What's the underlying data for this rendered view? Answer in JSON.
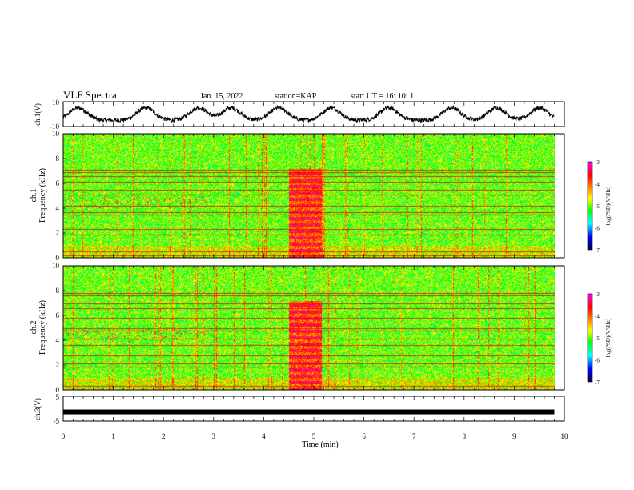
{
  "header": {
    "title": "VLF Spectra",
    "date": "Jan. 15, 2022",
    "station": "station=KAP",
    "start": "start UT =  16: 10: 1"
  },
  "colorbar": {
    "label": "log(PSD)(V²/Hz)",
    "ticks": [
      "-3",
      "-4",
      "-5",
      "-6",
      "-7"
    ],
    "colors": [
      "#ff00ff",
      "#ff0000",
      "#ff8800",
      "#ffff00",
      "#00ff00",
      "#00ffff",
      "#0000ff",
      "#000044"
    ]
  },
  "chart_data": [
    {
      "type": "line",
      "panel": "ch1-voltage",
      "ylabel": "ch.1(V)",
      "yticks": [
        "10",
        "-10"
      ],
      "ylim": [
        -10,
        10
      ],
      "xlim": [
        0,
        10
      ],
      "x_end": 9.8,
      "wave_centers": [
        0.3,
        1.65,
        2.7,
        3.35,
        4.3,
        5.35,
        6.5,
        7.75,
        8.65,
        9.5
      ],
      "level_low": -5,
      "level_high": 5
    },
    {
      "type": "heatmap",
      "panel": "ch1-spectrogram",
      "ylabel": "ch.1\nFrequency (kHz)",
      "ylabel_lines": [
        "ch.1",
        "Frequency (kHz)"
      ],
      "yticks": [
        "0",
        "2",
        "4",
        "6",
        "8",
        "10"
      ],
      "ylim": [
        0,
        10
      ],
      "xlim": [
        0,
        10
      ],
      "x_end": 9.8,
      "burst_window_min": [
        4.5,
        5.15
      ],
      "dark_lines_khz": [
        0.2,
        0.5,
        1.9,
        2.3,
        3.5,
        3.7,
        4.2,
        5.1,
        5.5,
        6.1,
        6.6,
        6.9,
        7.1
      ]
    },
    {
      "type": "heatmap",
      "panel": "ch2-spectrogram",
      "ylabel": "ch.2\nFrequency (kHz)",
      "ylabel_lines": [
        "ch.2",
        "Frequency (kHz)"
      ],
      "yticks": [
        "0",
        "2",
        "4",
        "6",
        "8",
        "10"
      ],
      "ylim": [
        0,
        10
      ],
      "xlim": [
        0,
        10
      ],
      "x_end": 9.8,
      "burst_window_min": [
        4.5,
        5.15
      ],
      "dark_lines_khz": [
        0.3,
        1.9,
        2.1,
        2.8,
        3.6,
        4.1,
        4.8,
        5.0,
        5.8,
        6.6,
        7.0,
        7.6,
        7.8
      ]
    },
    {
      "type": "line",
      "panel": "ch3-voltage",
      "ylabel": "ch.3(V)",
      "yticks": [
        "5",
        "-5"
      ],
      "ylim": [
        -5,
        5
      ],
      "xlim": [
        0,
        10
      ],
      "x_end": 9.8,
      "level": -1.3,
      "xlabel": "Time (min)",
      "xticks": [
        "0",
        "1",
        "2",
        "3",
        "4",
        "5",
        "6",
        "7",
        "8",
        "9",
        "10"
      ]
    }
  ]
}
